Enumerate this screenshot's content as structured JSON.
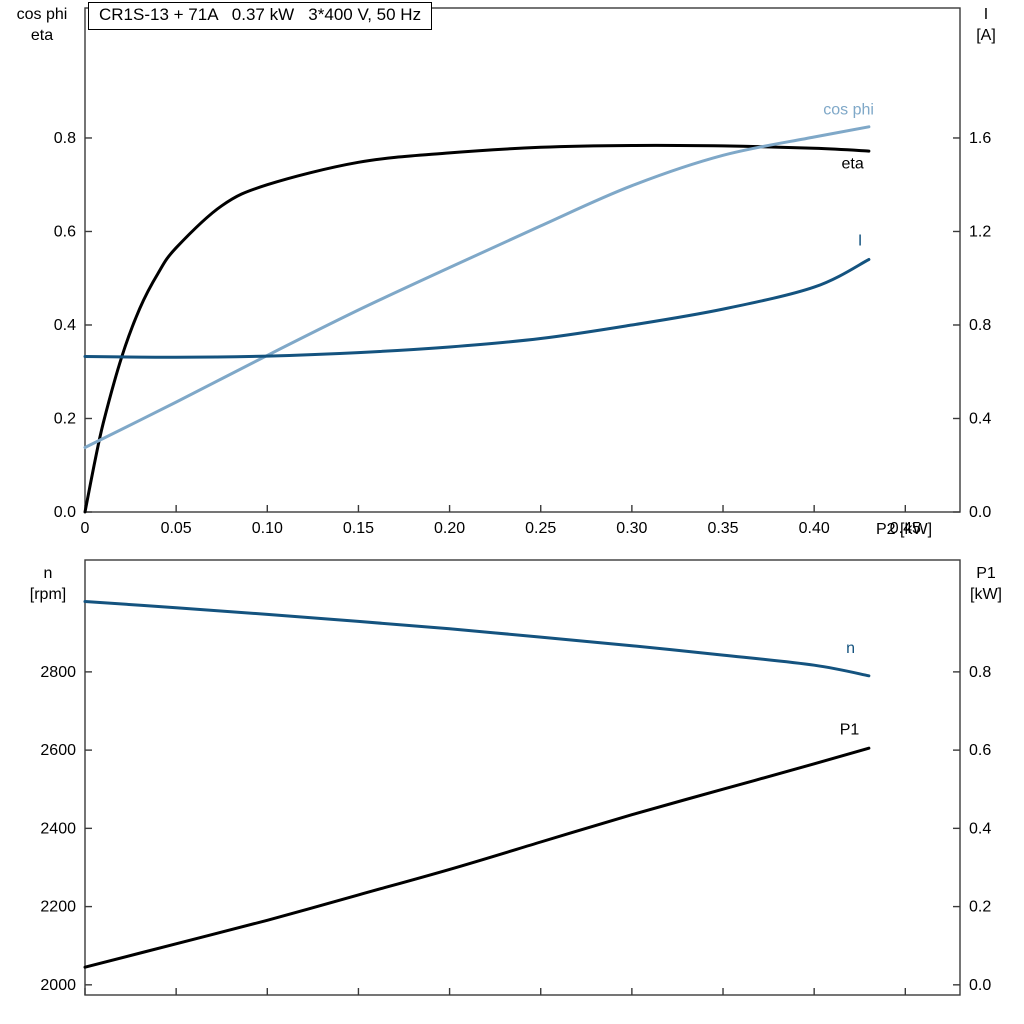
{
  "page": {
    "background": "#ffffff"
  },
  "colors": {
    "eta_curve": "#000000",
    "cos_phi_curve": "#7fa8c8",
    "current_curve": "#14537f",
    "axis": "#3a3a3a"
  },
  "chart_data": [
    {
      "type": "line",
      "title": "CR1S-13 + 71A   0.37 kW   3*400 V, 50 Hz",
      "grid": false,
      "x": {
        "label": "P2 [kW]",
        "min": 0,
        "max": 0.48,
        "ticks": [
          0,
          0.05,
          0.1,
          0.15,
          0.2,
          0.25,
          0.3,
          0.35,
          0.4,
          0.45
        ],
        "tick_labels": [
          "0",
          "0.05",
          "0.10",
          "0.15",
          "0.20",
          "0.25",
          "0.30",
          "0.35",
          "0.40",
          "0.45"
        ]
      },
      "y_left": {
        "name_lines": [
          "cos phi",
          "eta"
        ],
        "min": 0,
        "max": 1.078,
        "ticks": [
          0.0,
          0.2,
          0.4,
          0.6,
          0.8
        ],
        "tick_labels": [
          "0.0",
          "0.2",
          "0.4",
          "0.6",
          "0.8"
        ]
      },
      "y_right": {
        "name_lines": [
          "I",
          "[A]"
        ],
        "min": 0,
        "max": 2.156,
        "ticks": [
          0.0,
          0.4,
          0.8,
          1.2,
          1.6
        ],
        "tick_labels": [
          "0.0",
          "0.4",
          "0.8",
          "1.2",
          "1.6"
        ]
      },
      "series": [
        {
          "name": "eta",
          "color": "#000000",
          "axis": "left",
          "width": 3,
          "x": [
            0,
            0.005,
            0.01,
            0.02,
            0.03,
            0.04,
            0.05,
            0.075,
            0.1,
            0.15,
            0.2,
            0.25,
            0.3,
            0.35,
            0.4,
            0.43
          ],
          "y": [
            0,
            0.1,
            0.19,
            0.33,
            0.435,
            0.51,
            0.565,
            0.655,
            0.7,
            0.748,
            0.768,
            0.78,
            0.784,
            0.783,
            0.778,
            0.772
          ],
          "label": {
            "text": "eta",
            "x": 0.415,
            "y": 0.735
          }
        },
        {
          "name": "cos phi",
          "color": "#7fa8c8",
          "axis": "left",
          "width": 3,
          "x": [
            0,
            0.05,
            0.1,
            0.15,
            0.2,
            0.25,
            0.3,
            0.35,
            0.4,
            0.43
          ],
          "y": [
            0.138,
            0.235,
            0.335,
            0.432,
            0.523,
            0.612,
            0.698,
            0.763,
            0.802,
            0.824
          ],
          "label": {
            "text": "cos phi",
            "x": 0.405,
            "y": 0.85
          }
        },
        {
          "name": "I",
          "color": "#14537f",
          "axis": "right",
          "width": 3,
          "x": [
            0,
            0.05,
            0.1,
            0.15,
            0.2,
            0.25,
            0.3,
            0.35,
            0.4,
            0.43
          ],
          "y": [
            0.665,
            0.662,
            0.667,
            0.682,
            0.706,
            0.742,
            0.8,
            0.868,
            0.962,
            1.08
          ],
          "label": {
            "text": "I",
            "x": 0.424,
            "y": 1.14
          }
        }
      ]
    },
    {
      "type": "line",
      "title": "",
      "grid": false,
      "x": {
        "label": "",
        "min": 0,
        "max": 0.48,
        "ticks": [
          0,
          0.05,
          0.1,
          0.15,
          0.2,
          0.25,
          0.3,
          0.35,
          0.4,
          0.45
        ],
        "tick_labels": [
          "",
          "",
          "",
          "",
          "",
          "",
          "",
          "",
          "",
          ""
        ]
      },
      "y_left": {
        "name_lines": [
          "n",
          "[rpm]"
        ],
        "min": 1974,
        "max": 3086,
        "ticks": [
          2000,
          2200,
          2400,
          2600,
          2800
        ],
        "tick_labels": [
          "2000",
          "2200",
          "2400",
          "2600",
          "2800"
        ]
      },
      "y_right": {
        "name_lines": [
          "P1",
          "[kW]"
        ],
        "min": -0.026,
        "max": 1.086,
        "ticks": [
          0.0,
          0.2,
          0.4,
          0.6,
          0.8
        ],
        "tick_labels": [
          "0.0",
          "0.2",
          "0.4",
          "0.6",
          "0.8"
        ]
      },
      "series": [
        {
          "name": "n",
          "color": "#14537f",
          "axis": "left",
          "width": 3,
          "x": [
            0,
            0.05,
            0.1,
            0.15,
            0.2,
            0.25,
            0.3,
            0.35,
            0.4,
            0.43
          ],
          "y": [
            2980,
            2964,
            2947,
            2929,
            2910,
            2889,
            2867,
            2843,
            2817,
            2790
          ],
          "label": {
            "text": "n",
            "x": 0.4175,
            "y": 2848
          }
        },
        {
          "name": "P1",
          "color": "#000000",
          "axis": "left2right",
          "width": 3,
          "x": [
            0,
            0.05,
            0.1,
            0.15,
            0.2,
            0.25,
            0.3,
            0.35,
            0.4,
            0.43
          ],
          "y": [
            0.045,
            0.105,
            0.165,
            0.23,
            0.295,
            0.365,
            0.435,
            0.5,
            0.565,
            0.605
          ],
          "axis_used": "right",
          "label": {
            "text": "P1",
            "x": 0.414,
            "y": 0.64
          }
        }
      ]
    }
  ]
}
